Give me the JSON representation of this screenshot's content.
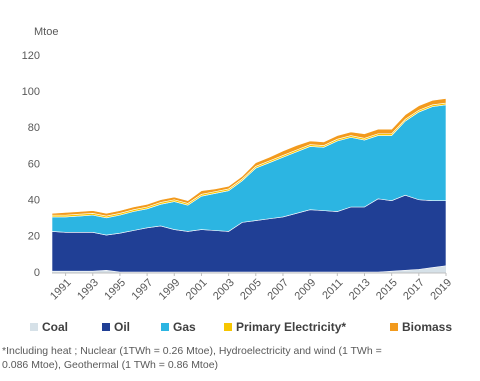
{
  "chart_data": {
    "type": "stacked-area",
    "y_unit": "Mtoe",
    "x": [
      1990,
      1991,
      1992,
      1993,
      1994,
      1995,
      1996,
      1997,
      1998,
      1999,
      2000,
      2001,
      2002,
      2003,
      2004,
      2005,
      2006,
      2007,
      2008,
      2009,
      2010,
      2011,
      2012,
      2013,
      2014,
      2015,
      2016,
      2017,
      2018,
      2019
    ],
    "xlim": [
      1990,
      2019
    ],
    "xticks": [
      1991,
      1993,
      1995,
      1997,
      1999,
      2001,
      2003,
      2005,
      2007,
      2009,
      2011,
      2013,
      2015,
      2017,
      2019
    ],
    "ylim": [
      0,
      120
    ],
    "yticks": [
      0,
      20,
      40,
      60,
      80,
      100,
      120
    ],
    "grid": false,
    "series": [
      {
        "name": "Coal",
        "color": "#d6e1e8",
        "values": [
          1,
          1,
          1,
          1,
          1.5,
          0.5,
          0.5,
          0.5,
          0.5,
          0.5,
          0.5,
          0.5,
          0.5,
          0.5,
          0.5,
          0.5,
          0.5,
          0.5,
          0.5,
          0.5,
          0.5,
          0.5,
          0.5,
          0.5,
          0.5,
          1,
          1.5,
          2,
          3,
          4
        ]
      },
      {
        "name": "Oil",
        "color": "#203f95",
        "values": [
          22,
          21.5,
          21.5,
          21.5,
          19.5,
          21.5,
          23,
          24.5,
          25.5,
          23.5,
          22.5,
          23.5,
          23,
          22.5,
          27.5,
          28.5,
          29.5,
          30.5,
          32.5,
          34.5,
          34,
          33.5,
          36,
          36,
          40.5,
          39,
          41.5,
          38.5,
          37,
          36
        ]
      },
      {
        "name": "Gas",
        "color": "#2cb5e2",
        "values": [
          8,
          8.5,
          9,
          9.5,
          9.5,
          10,
          10.5,
          10.5,
          12,
          15.5,
          14.5,
          18.5,
          20.5,
          22.5,
          23,
          29,
          31,
          33,
          34,
          35,
          35,
          39,
          38.5,
          37,
          35,
          36,
          41,
          48.5,
          52,
          53
        ]
      },
      {
        "name": "Primary Electricity*",
        "color": "#f7c600",
        "values": [
          1,
          1,
          1,
          1,
          1,
          1,
          1,
          1,
          1,
          1,
          1,
          1,
          1,
          1,
          1,
          1,
          1,
          1,
          1,
          1,
          1,
          1,
          1,
          1,
          1,
          1,
          1,
          1,
          1,
          1
        ]
      },
      {
        "name": "Biomass",
        "color": "#f29a1d",
        "values": [
          1,
          1.5,
          1.5,
          1.5,
          1.5,
          1.5,
          1.5,
          1.5,
          1.5,
          1.5,
          1.5,
          2,
          1.5,
          1.5,
          1.5,
          2,
          2,
          2.5,
          2.5,
          2,
          2,
          2,
          2,
          2.5,
          2.5,
          2.5,
          2.5,
          2.5,
          2.5,
          2.5
        ]
      }
    ],
    "footnote": [
      "*Including heat ; Nuclear (1TWh = 0.26 Mtoe), Hydroelectricity and wind (1 TWh =",
      "0.086 Mtoe), Geothermal (1 TWh = 0.86 Mtoe)"
    ]
  }
}
